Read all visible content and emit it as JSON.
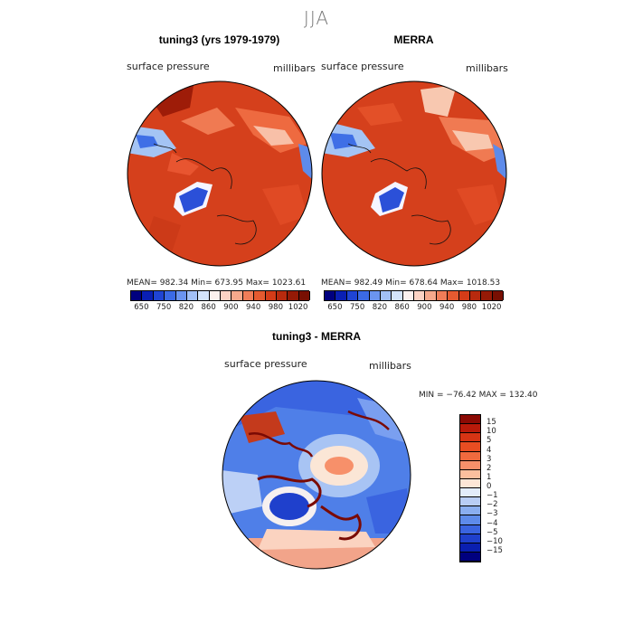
{
  "title": "JJA",
  "panels": [
    {
      "title": "tuning3 (yrs 1979-1979)",
      "variable": "surface pressure",
      "units": "millibars",
      "stats": "MEAN= 982.34   Min= 673.95   Max= 1023.61"
    },
    {
      "title": "MERRA",
      "variable": "surface pressure",
      "units": "millibars",
      "stats": "MEAN= 982.49   Min= 678.64   Max= 1018.53"
    }
  ],
  "abs_colorbar": {
    "ticks": [
      "650",
      "750",
      "820",
      "860",
      "900",
      "940",
      "980",
      "1020"
    ],
    "colors": [
      "#00007f",
      "#0a1fb4",
      "#1f44d4",
      "#3b6ae6",
      "#6b94f0",
      "#a2c0f6",
      "#d4e4fa",
      "#fbf1ee",
      "#fbd3c4",
      "#f6a98c",
      "#f07d58",
      "#e55a30",
      "#d43c18",
      "#b82a0e",
      "#951a06",
      "#780f02"
    ]
  },
  "diff_panel": {
    "title": "tuning3 - MERRA",
    "variable": "surface pressure",
    "units": "millibars",
    "stats": "MIN = −76.42  MAX = 132.40"
  },
  "diff_colorbar": {
    "labels": [
      "15",
      "10",
      "5",
      "4",
      "3",
      "2",
      "1",
      "0",
      "−1",
      "−2",
      "−3",
      "−4",
      "−5",
      "−10",
      "−15"
    ],
    "colors": [
      "#8b0a04",
      "#b81a0a",
      "#d63414",
      "#e84d22",
      "#f06a3e",
      "#f7906a",
      "#fbbf9e",
      "#fde6d6",
      "#e2ecfb",
      "#b8cdf5",
      "#8aaef0",
      "#5e8bea",
      "#3a64e0",
      "#1f40cc",
      "#0a1fb0",
      "#00007f"
    ]
  }
}
